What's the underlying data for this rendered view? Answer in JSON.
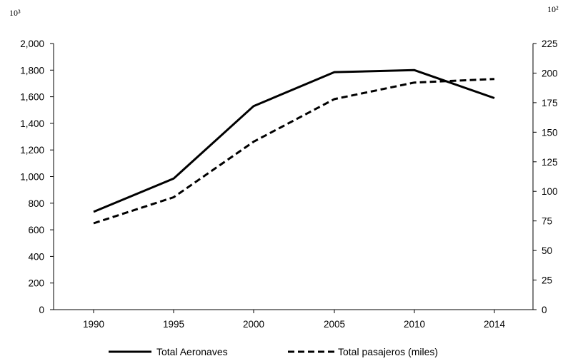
{
  "chart_data": {
    "type": "line",
    "title": "",
    "categories": [
      "1990",
      "1995",
      "2000",
      "2005",
      "2010",
      "2014"
    ],
    "y_left": {
      "unit_label": "10³",
      "ylim": [
        0,
        2000
      ],
      "ticks": [
        0,
        200,
        400,
        600,
        800,
        1000,
        1200,
        1400,
        1600,
        1800,
        2000
      ],
      "tick_labels": [
        "0",
        "200",
        "400",
        "600",
        "800",
        "1,000",
        "1,200",
        "1,400",
        "1,600",
        "1,800",
        "2,000"
      ]
    },
    "y_right": {
      "unit_label": "10²",
      "ylim": [
        0,
        225
      ],
      "ticks": [
        0,
        25,
        50,
        75,
        100,
        125,
        150,
        175,
        200,
        225
      ],
      "tick_labels": [
        "0",
        "25",
        "50",
        "75",
        "100",
        "125",
        "150",
        "175",
        "200",
        "225"
      ]
    },
    "series": [
      {
        "name": "Total Aeronaves",
        "axis": "left",
        "style": "solid",
        "color": "#000000",
        "values": [
          735,
          985,
          1530,
          1785,
          1800,
          1590
        ]
      },
      {
        "name": "Total pasajeros (miles)",
        "axis": "right",
        "style": "dashed",
        "color": "#000000",
        "values": [
          73,
          95,
          142,
          178,
          192,
          195
        ]
      }
    ],
    "grid": false,
    "legend_position": "bottom"
  }
}
